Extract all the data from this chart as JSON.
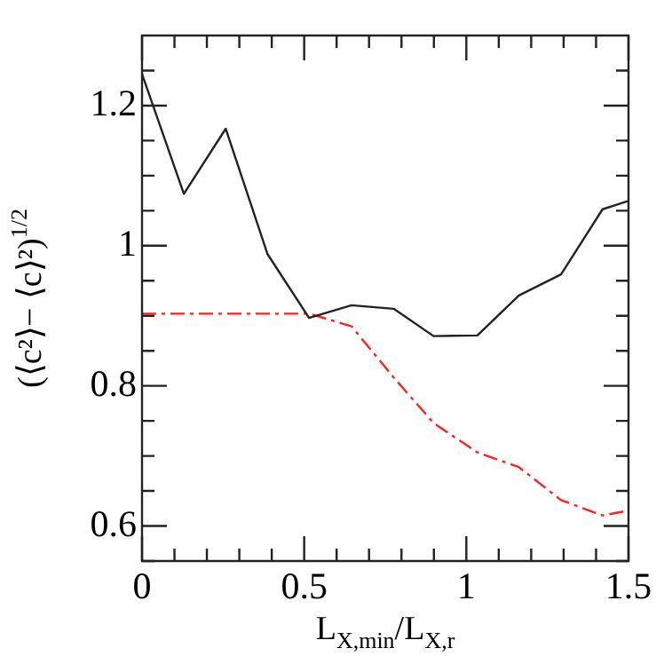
{
  "chart_data": {
    "type": "line",
    "xlabel": "L$_{X,min}$/L$_{X,r}$",
    "ylabel": "(⟨c²⟩− ⟨c⟩²)$^{1/2}$",
    "xlim": [
      0,
      1.5
    ],
    "ylim": [
      0.55,
      1.3
    ],
    "xticks": [
      0,
      {
        "value": 0.1,
        "label": null
      },
      {
        "value": 0.2,
        "label": null
      },
      {
        "value": 0.3,
        "label": null
      },
      {
        "value": 0.4,
        "label": null
      },
      0.5,
      {
        "value": 0.6,
        "label": null
      },
      {
        "value": 0.7,
        "label": null
      },
      {
        "value": 0.8,
        "label": null
      },
      {
        "value": 0.9,
        "label": null
      },
      1,
      {
        "value": 1.1,
        "label": null
      },
      {
        "value": 1.2,
        "label": null
      },
      {
        "value": 1.3,
        "label": null
      },
      {
        "value": 1.4,
        "label": null
      },
      1.5
    ],
    "yticks": [
      {
        "value": 0.55,
        "label": null
      },
      0.6,
      {
        "value": 0.65,
        "label": null
      },
      {
        "value": 0.7,
        "label": null
      },
      {
        "value": 0.75,
        "label": null
      },
      0.8,
      {
        "value": 0.85,
        "label": null
      },
      {
        "value": 0.9,
        "label": null
      },
      {
        "value": 0.95,
        "label": null
      },
      1,
      {
        "value": 1.05,
        "label": null
      },
      {
        "value": 1.1,
        "label": null
      },
      {
        "value": 1.15,
        "label": null
      },
      1.2,
      {
        "value": 1.25,
        "label": null
      }
    ],
    "grid": false,
    "legend": false,
    "marker": "none",
    "x": [
      0,
      0.129,
      0.258,
      0.387,
      0.515,
      0.646,
      0.776,
      0.899,
      1.034,
      1.162,
      1.292,
      1.42,
      1.5
    ],
    "series": [
      {
        "color": "#222222",
        "line_style": "solid",
        "values": [
          1.245,
          1.074,
          1.167,
          0.988,
          0.897,
          0.915,
          0.91,
          0.871,
          0.872,
          0.929,
          0.959,
          1.052,
          1.064
        ]
      },
      {
        "color": "#ff2020",
        "line_style": "dashed",
        "values": [
          0.903,
          0.903,
          0.903,
          0.903,
          0.903,
          0.885,
          0.812,
          0.747,
          0.705,
          0.684,
          0.637,
          0.615,
          0.622
        ]
      }
    ]
  }
}
